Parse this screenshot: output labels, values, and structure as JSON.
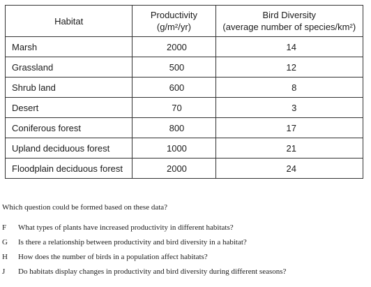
{
  "table": {
    "headers": {
      "habitat": "Habitat",
      "productivity_line1": "Productivity",
      "productivity_line2": "(g/m²/yr)",
      "diversity_line1": "Bird Diversity",
      "diversity_line2": "(average number of species/km²)"
    },
    "rows": [
      {
        "habitat": "Marsh",
        "productivity": "2000",
        "diversity": "14"
      },
      {
        "habitat": "Grassland",
        "productivity": "500",
        "diversity": "12"
      },
      {
        "habitat": "Shrub land",
        "productivity": "600",
        "diversity": "8"
      },
      {
        "habitat": "Desert",
        "productivity": "70",
        "diversity": "3"
      },
      {
        "habitat": "Coniferous forest",
        "productivity": "800",
        "diversity": "17"
      },
      {
        "habitat": "Upland deciduous forest",
        "productivity": "1000",
        "diversity": "21"
      },
      {
        "habitat": "Floodplain deciduous forest",
        "productivity": "2000",
        "diversity": "24"
      }
    ]
  },
  "question": "Which question could be formed based on these data?",
  "choices": [
    {
      "letter": "F",
      "text": "What types of plants have increased productivity in different habitats?"
    },
    {
      "letter": "G",
      "text": "Is there a relationship between productivity and bird diversity in a habitat?"
    },
    {
      "letter": "H",
      "text": "How does the number of birds in a population affect habitats?"
    },
    {
      "letter": "J",
      "text": "Do habitats display changes in productivity and bird diversity during different seasons?"
    }
  ]
}
